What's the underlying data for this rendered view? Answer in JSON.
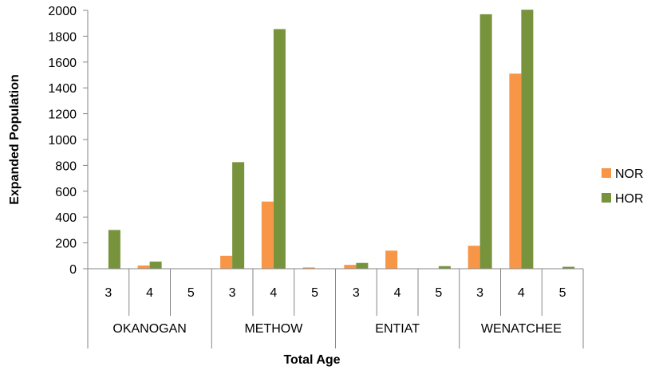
{
  "chart_data": {
    "type": "bar",
    "xlabel": "Total Age",
    "ylabel": "Expanded Population",
    "ylim": [
      0,
      2000
    ],
    "yticks": [
      0,
      200,
      400,
      600,
      800,
      1000,
      1200,
      1400,
      1600,
      1800,
      2000
    ],
    "grid": false,
    "legend_position": "right",
    "groups": [
      {
        "name": "OKANOGAN",
        "ages": [
          "3",
          "4",
          "5"
        ]
      },
      {
        "name": "METHOW",
        "ages": [
          "3",
          "4",
          "5"
        ]
      },
      {
        "name": "ENTIAT",
        "ages": [
          "3",
          "4",
          "5"
        ]
      },
      {
        "name": "WENATCHEE",
        "ages": [
          "3",
          "4",
          "5"
        ]
      }
    ],
    "series": [
      {
        "name": "NOR",
        "color": "#F79646",
        "values": [
          0,
          25,
          0,
          100,
          520,
          10,
          30,
          140,
          0,
          178,
          1510,
          0
        ]
      },
      {
        "name": "HOR",
        "color": "#77933C",
        "values": [
          300,
          55,
          0,
          825,
          1855,
          0,
          45,
          0,
          20,
          1970,
          2005,
          15
        ]
      }
    ]
  }
}
